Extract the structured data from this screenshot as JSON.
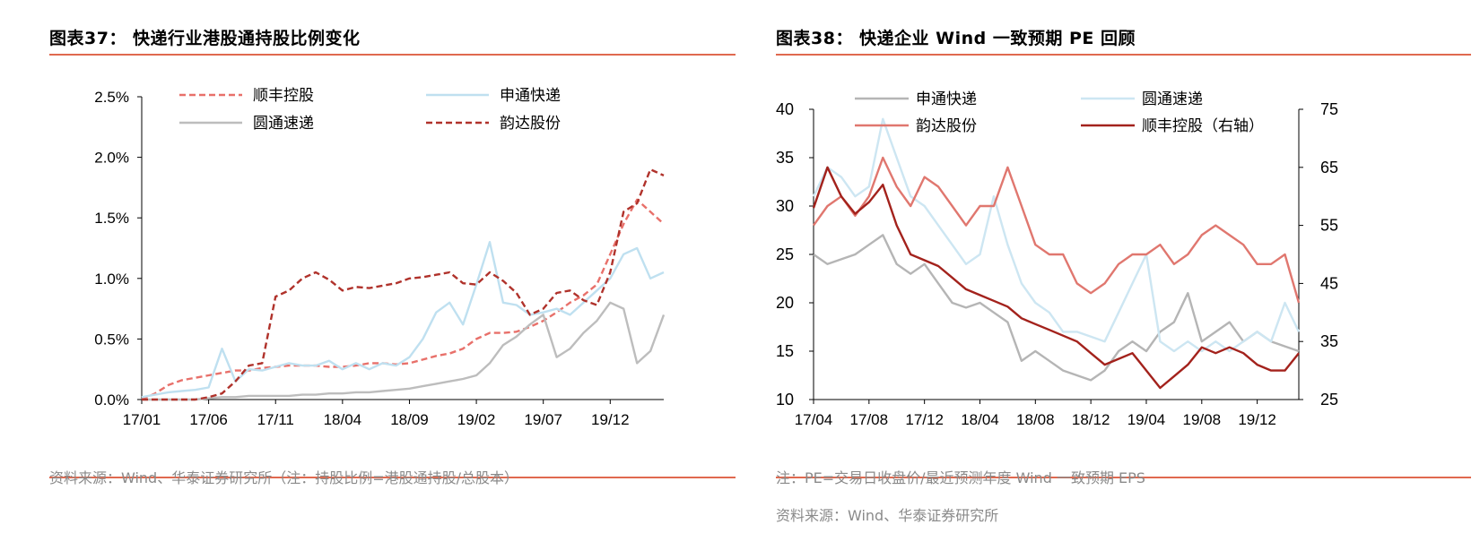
{
  "charts": [
    {
      "fig_title": "图表37：  快递行业港股通持股比例变化",
      "source": "资料来源：Wind、华泰证券研究所（注：持股比例=港股通持股/总股本）",
      "note": "",
      "chart_data": {
        "type": "line",
        "title": "",
        "x": [
          "17/01",
          "17/02",
          "17/03",
          "17/04",
          "17/05",
          "17/06",
          "17/07",
          "17/08",
          "17/09",
          "17/10",
          "17/11",
          "17/12",
          "18/01",
          "18/02",
          "18/03",
          "18/04",
          "18/05",
          "18/06",
          "18/07",
          "18/08",
          "18/09",
          "18/10",
          "18/11",
          "18/12",
          "19/01",
          "19/02",
          "19/03",
          "19/04",
          "19/05",
          "19/06",
          "19/07",
          "19/08",
          "19/09",
          "19/10",
          "19/11",
          "19/12",
          "20/01",
          "20/02",
          "20/03",
          "20/04"
        ],
        "x_tick_labels": [
          "17/01",
          "17/06",
          "17/11",
          "18/04",
          "18/09",
          "19/02",
          "19/07",
          "19/12"
        ],
        "y_tick_labels": [
          "0.0%",
          "0.5%",
          "1.0%",
          "1.5%",
          "2.0%",
          "2.5%"
        ],
        "ylim": [
          0,
          2.5
        ],
        "y_unit": "%",
        "legend": "top",
        "series": [
          {
            "name": "顺丰控股",
            "color": "#e8706a",
            "dash": true,
            "values": [
              0.0,
              0.05,
              0.12,
              0.16,
              0.18,
              0.2,
              0.22,
              0.24,
              0.24,
              0.26,
              0.27,
              0.28,
              0.28,
              0.28,
              0.27,
              0.27,
              0.28,
              0.3,
              0.3,
              0.29,
              0.3,
              0.33,
              0.36,
              0.38,
              0.42,
              0.5,
              0.55,
              0.55,
              0.56,
              0.6,
              0.65,
              0.72,
              0.8,
              0.86,
              0.95,
              1.2,
              1.45,
              1.65,
              1.55,
              1.45
            ]
          },
          {
            "name": "申通快递",
            "color": "#bfe0f0",
            "dash": false,
            "values": [
              0.02,
              0.04,
              0.06,
              0.07,
              0.08,
              0.1,
              0.42,
              0.15,
              0.25,
              0.24,
              0.27,
              0.3,
              0.28,
              0.28,
              0.32,
              0.25,
              0.3,
              0.25,
              0.3,
              0.28,
              0.35,
              0.5,
              0.72,
              0.8,
              0.62,
              0.95,
              1.3,
              0.8,
              0.78,
              0.7,
              0.72,
              0.75,
              0.7,
              0.8,
              0.9,
              1.0,
              1.2,
              1.25,
              1.0,
              1.05
            ]
          },
          {
            "name": "圆通速递",
            "color": "#bdbdbd",
            "dash": false,
            "values": [
              0.0,
              0.0,
              0.0,
              0.0,
              0.0,
              0.01,
              0.02,
              0.02,
              0.03,
              0.03,
              0.03,
              0.03,
              0.04,
              0.04,
              0.05,
              0.05,
              0.06,
              0.06,
              0.07,
              0.08,
              0.09,
              0.11,
              0.13,
              0.15,
              0.17,
              0.2,
              0.3,
              0.45,
              0.52,
              0.62,
              0.7,
              0.35,
              0.42,
              0.55,
              0.65,
              0.8,
              0.75,
              0.3,
              0.4,
              0.7
            ]
          },
          {
            "name": "韵达股份",
            "color": "#b0322b",
            "dash": true,
            "values": [
              0.0,
              0.0,
              0.0,
              0.0,
              0.0,
              0.02,
              0.05,
              0.15,
              0.28,
              0.3,
              0.85,
              0.9,
              1.0,
              1.05,
              0.99,
              0.9,
              0.93,
              0.92,
              0.94,
              0.96,
              1.0,
              1.01,
              1.03,
              1.05,
              0.96,
              0.95,
              1.05,
              0.98,
              0.88,
              0.7,
              0.75,
              0.88,
              0.9,
              0.82,
              0.78,
              1.05,
              1.55,
              1.62,
              1.9,
              1.85
            ]
          }
        ]
      }
    },
    {
      "fig_title": "图表38：  快递企业 Wind 一致预期 PE 回顾",
      "note": "注：PE=交易日收盘价/最近预测年度 Wind 一致预期 EPS",
      "source": "资料来源：Wind、华泰证券研究所",
      "chart_data": {
        "type": "line",
        "title": "",
        "x": [
          "17/04",
          "17/05",
          "17/06",
          "17/07",
          "17/08",
          "17/09",
          "17/10",
          "17/11",
          "17/12",
          "18/01",
          "18/02",
          "18/03",
          "18/04",
          "18/05",
          "18/06",
          "18/07",
          "18/08",
          "18/09",
          "18/10",
          "18/11",
          "18/12",
          "19/01",
          "19/02",
          "19/03",
          "19/04",
          "19/05",
          "19/06",
          "19/07",
          "19/08",
          "19/09",
          "19/10",
          "19/11",
          "19/12",
          "20/01",
          "20/02",
          "20/03"
        ],
        "x_tick_labels": [
          "17/04",
          "17/08",
          "17/12",
          "18/04",
          "18/08",
          "18/12",
          "19/04",
          "19/08",
          "19/12"
        ],
        "y_left_ticks": [
          "10",
          "15",
          "20",
          "25",
          "30",
          "35",
          "40"
        ],
        "y_right_ticks": [
          "25",
          "35",
          "45",
          "55",
          "65",
          "75"
        ],
        "ylim_left": [
          10,
          40
        ],
        "ylim_right": [
          25,
          75
        ],
        "legend": "top",
        "series": [
          {
            "name": "申通快递",
            "color": "#b5b5b5",
            "axis": "left",
            "values": [
              25,
              24,
              24.5,
              25,
              26,
              27,
              24,
              23,
              24,
              22,
              20,
              19.5,
              20,
              19,
              18,
              14,
              15,
              14,
              13,
              12.5,
              12,
              13,
              15,
              16,
              15,
              17,
              18,
              21,
              16,
              17,
              18,
              16,
              17,
              16,
              15.5,
              15
            ]
          },
          {
            "name": "圆通速递",
            "color": "#cde6f2",
            "axis": "left",
            "values": [
              31,
              34,
              33,
              31,
              32,
              39,
              35,
              31,
              30,
              28,
              26,
              24,
              25,
              31,
              26,
              22,
              20,
              19,
              17,
              17,
              16.5,
              16,
              19,
              22,
              25,
              16,
              15,
              16,
              15,
              16,
              15,
              16,
              17,
              16,
              20,
              17
            ]
          },
          {
            "name": "韵达股份",
            "color": "#e0776f",
            "axis": "left",
            "values": [
              28,
              30,
              31,
              29,
              31,
              35,
              32,
              30,
              33,
              32,
              30,
              28,
              30,
              30,
              34,
              30,
              26,
              25,
              25,
              22,
              21,
              22,
              24,
              25,
              25,
              26,
              24,
              25,
              27,
              28,
              27,
              26,
              24,
              24,
              25,
              20
            ]
          },
          {
            "name": "顺丰控股（右轴）",
            "color": "#a3221c",
            "axis": "right",
            "values": [
              58,
              65,
              60,
              57,
              59,
              62,
              55,
              50,
              49,
              48,
              46,
              44,
              43,
              42,
              41,
              39,
              38,
              37,
              36,
              35,
              33,
              31,
              32,
              33,
              30,
              27,
              29,
              31,
              34,
              33,
              34,
              33,
              31,
              30,
              30,
              33
            ]
          }
        ]
      }
    }
  ]
}
